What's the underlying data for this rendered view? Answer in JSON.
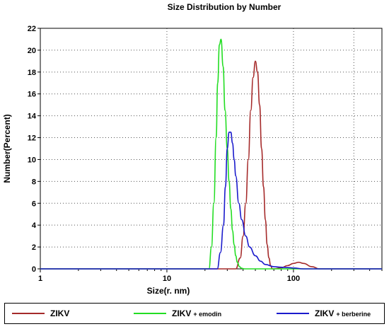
{
  "chart_data": {
    "type": "line",
    "title": "Size Distribution by Number",
    "xlabel": "Size(r. nm)",
    "ylabel": "Number(Percent)",
    "x_scale": "log",
    "xlim": [
      1,
      500
    ],
    "ylim": [
      0,
      22
    ],
    "x_ticks": [
      "1",
      "10",
      "100"
    ],
    "y_ticks": [
      "0",
      "2",
      "4",
      "6",
      "8",
      "10",
      "12",
      "14",
      "16",
      "18",
      "20",
      "22"
    ],
    "grid": true,
    "legend_position": "bottom",
    "series": [
      {
        "name": "ZIKV",
        "color": "#a52a2a",
        "x": [
          35,
          38,
          40,
          42,
          44,
          46,
          48,
          50,
          52,
          54,
          56,
          58,
          60,
          62,
          64,
          66,
          68,
          70,
          80,
          90,
          100,
          110,
          120,
          140,
          160
        ],
        "y": [
          0,
          1,
          3,
          6,
          10,
          14.5,
          17.5,
          19,
          18,
          15,
          11,
          7.5,
          4.5,
          2.2,
          1,
          0.3,
          0,
          0,
          0.1,
          0.3,
          0.5,
          0.6,
          0.5,
          0.2,
          0
        ]
      },
      {
        "name": "ZIKV + emodin",
        "color": "#22dd22",
        "x": [
          21.5,
          22.5,
          23.5,
          24.5,
          25.2,
          26,
          26.8,
          27.8,
          28.8,
          30,
          31,
          32,
          33,
          34,
          35,
          36,
          37.5,
          39,
          41
        ],
        "y": [
          0,
          2,
          6,
          12,
          17,
          20.5,
          21,
          18.5,
          14.5,
          11,
          8,
          5.5,
          3.5,
          2.2,
          1.2,
          0.6,
          0.2,
          0.05,
          0
        ]
      },
      {
        "name": "ZIKV + berberine",
        "color": "#1a1acc",
        "x": [
          25,
          26.5,
          28,
          29,
          30,
          31,
          32,
          33,
          34,
          35,
          37,
          39,
          42,
          45,
          50,
          55,
          60,
          70,
          80,
          90,
          100,
          120
        ],
        "y": [
          0,
          1.5,
          4,
          7.5,
          11,
          12.5,
          12.5,
          11.5,
          10,
          8.5,
          6,
          4.5,
          3,
          2,
          1.2,
          0.7,
          0.4,
          0.2,
          0.15,
          0.12,
          0.08,
          0
        ]
      }
    ]
  },
  "legend": {
    "items": [
      {
        "label": "ZIKV",
        "sub": "",
        "color": "#a52a2a"
      },
      {
        "label": "ZIKV",
        "sub": "+ emodin",
        "color": "#22dd22"
      },
      {
        "label": "ZIKV",
        "sub": "+ berberine",
        "color": "#1a1acc"
      }
    ]
  }
}
